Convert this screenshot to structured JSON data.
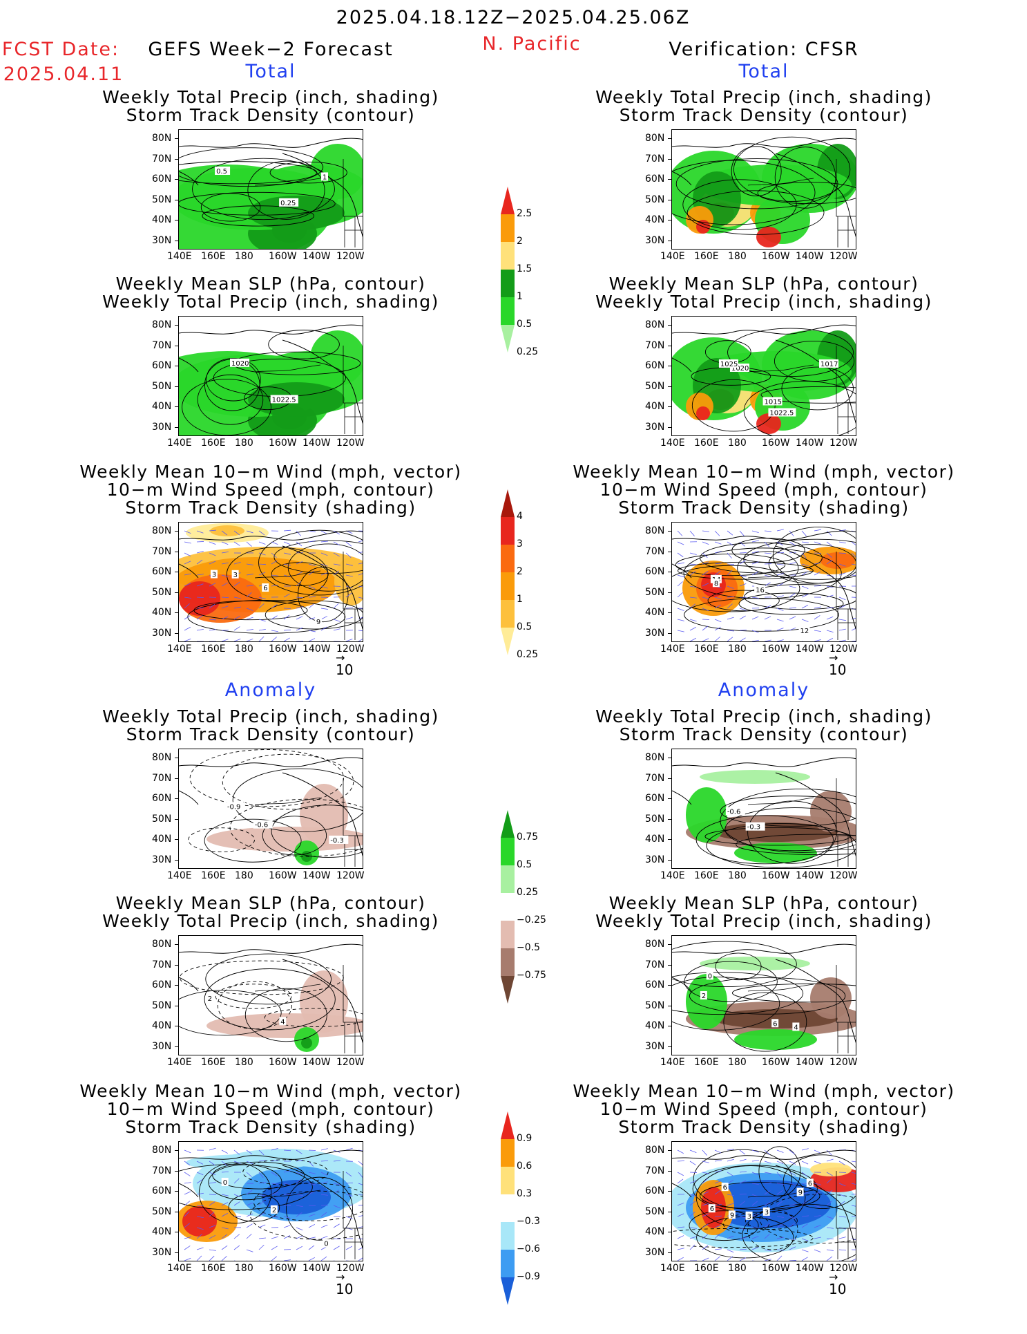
{
  "header": {
    "date_range": "2025.04.18.12Z−2025.04.25.06Z",
    "fcst_label": "FCST Date:",
    "fcst_date": "2025.04.11",
    "left_title": "GEFS Week−2 Forecast",
    "region": "N. Pacific",
    "right_title": "Verification: CFSR"
  },
  "sections": {
    "total": "Total",
    "anomaly": "Anomaly"
  },
  "panel_titles": {
    "precip_storm": [
      "Weekly Total Precip (inch, shading)",
      "Storm Track Density (contour)"
    ],
    "slp_precip": [
      "Weekly Mean SLP (hPa, contour)",
      "Weekly Total Precip (inch, shading)"
    ],
    "wind_storm": [
      "Weekly Mean 10−m Wind (mph, vector)",
      "10−m Wind Speed (mph, contour)",
      "Storm Track Density (shading)"
    ]
  },
  "axes": {
    "lat_labels": [
      "80N",
      "70N",
      "60N",
      "50N",
      "40N",
      "30N"
    ],
    "lon_labels": [
      "140E",
      "160E",
      "180",
      "160W",
      "140W",
      "120W"
    ]
  },
  "vector_ref": "10",
  "colorbars": {
    "precip_total": {
      "labels": [
        "2.5",
        "2",
        "1.5",
        "1",
        "0.5",
        "0.25"
      ],
      "colors": [
        "#e8261e",
        "#fa9b0a",
        "#ffe17a",
        "#139c18",
        "#2ad72a",
        "#a8f0a0"
      ]
    },
    "storm_total": {
      "labels": [
        "4",
        "3",
        "2",
        "1",
        "0.5",
        "0.25"
      ],
      "colors": [
        "#a8180c",
        "#e8261e",
        "#fa6a10",
        "#fa9b0a",
        "#fdc03c",
        "#ffec98"
      ]
    },
    "precip_anom": {
      "labels": [
        "0.75",
        "0.5",
        "0.25",
        "−0.25",
        "−0.5",
        "−0.75"
      ],
      "colors": [
        "#139c18",
        "#2ad72a",
        "#a8f0a0",
        "#ffffff",
        "#e3bcb1",
        "#a77c6e",
        "#6e4634"
      ]
    },
    "storm_anom": {
      "labels": [
        "0.9",
        "0.6",
        "0.3",
        "−0.3",
        "−0.6",
        "−0.9"
      ],
      "colors": [
        "#e8261e",
        "#fa9b0a",
        "#ffe17a",
        "#ffffff",
        "#a8e7f8",
        "#3d9cf2",
        "#1a5fd8"
      ]
    }
  },
  "chart_data": [
    {
      "type": "heatmap",
      "panel": "gefs-total-precip-storm",
      "title": "Weekly Total Precip (inch, shading) / Storm Track Density (contour)",
      "contour_labels": [
        "0.5",
        "0.25",
        "1"
      ]
    },
    {
      "type": "heatmap",
      "panel": "cfsr-total-precip-storm",
      "title": "Weekly Total Precip (inch, shading) / Storm Track Density (contour)",
      "contour_labels": []
    },
    {
      "type": "heatmap",
      "panel": "gefs-total-slp-precip",
      "title": "Weekly Mean SLP (hPa, contour) / Weekly Total Precip (inch, shading)",
      "contour_labels": [
        "1020",
        "1022.5"
      ]
    },
    {
      "type": "heatmap",
      "panel": "cfsr-total-slp-precip",
      "title": "Weekly Mean SLP (hPa, contour) / Weekly Total Precip (inch, shading)",
      "contour_labels": [
        "1020",
        "1015",
        "1017",
        "1025",
        "1022.5"
      ]
    },
    {
      "type": "heatmap",
      "panel": "gefs-total-wind-storm",
      "title": "Weekly Mean 10-m Wind (mph, vector) / 10-m Wind Speed (mph, contour) / Storm Track Density (shading)",
      "contour_labels": [
        "3",
        "6",
        "9",
        "3"
      ]
    },
    {
      "type": "heatmap",
      "panel": "cfsr-total-wind-storm",
      "title": "Weekly Mean 10-m Wind (mph, vector) / 10-m Wind Speed (mph, contour) / Storm Track Density (shading)",
      "contour_labels": [
        "14",
        "16",
        "12",
        "8"
      ]
    },
    {
      "type": "heatmap",
      "panel": "gefs-anom-precip-storm",
      "title": "Weekly Total Precip (inch, shading) / Storm Track Density (contour)",
      "contour_labels": [
        "-0.9",
        "-0.6",
        "-0.3"
      ]
    },
    {
      "type": "heatmap",
      "panel": "cfsr-anom-precip-storm",
      "title": "Weekly Total Precip (inch, shading) / Storm Track Density (contour)",
      "contour_labels": [
        "-0.6",
        "-0.3"
      ]
    },
    {
      "type": "heatmap",
      "panel": "gefs-anom-slp-precip",
      "title": "Weekly Mean SLP (hPa, contour) / Weekly Total Precip (inch, shading)",
      "contour_labels": [
        "2",
        "4"
      ]
    },
    {
      "type": "heatmap",
      "panel": "cfsr-anom-slp-precip",
      "title": "Weekly Mean SLP (hPa, contour) / Weekly Total Precip (inch, shading)",
      "contour_labels": [
        "0",
        "6",
        "4",
        "2"
      ]
    },
    {
      "type": "heatmap",
      "panel": "gefs-anom-wind-storm",
      "title": "Weekly Mean 10-m Wind (mph, vector) / 10-m Wind Speed (mph, contour) / Storm Track Density (shading)",
      "contour_labels": [
        "0",
        "2",
        "0"
      ]
    },
    {
      "type": "heatmap",
      "panel": "cfsr-anom-wind-storm",
      "title": "Weekly Mean 10-m Wind (mph, vector) / 10-m Wind Speed (mph, contour) / Storm Track Density (shading)",
      "contour_labels": [
        "6",
        "3",
        "6",
        "9",
        "3",
        "9",
        "6"
      ]
    }
  ]
}
